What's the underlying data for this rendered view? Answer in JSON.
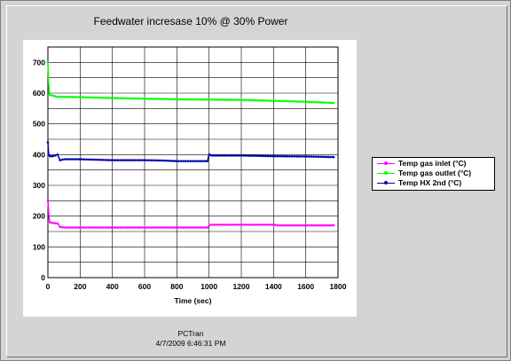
{
  "window": {
    "title": "Feedwater incresase 10% @ 30% Power",
    "footer_app": "PCTran",
    "footer_timestamp": "4/7/2009 6:46:31 PM"
  },
  "chart_data": {
    "type": "line",
    "title": "Feedwater incresase 10% @ 30% Power",
    "xlabel": "Time (sec)",
    "ylabel": "",
    "xlim": [
      0,
      1800
    ],
    "ylim": [
      0,
      750
    ],
    "xticks": [
      0,
      200,
      400,
      600,
      800,
      1000,
      1200,
      1400,
      1600,
      1800
    ],
    "yticks": [
      0,
      100,
      200,
      300,
      400,
      500,
      600,
      700
    ],
    "grid": true,
    "legend_position": "right",
    "series": [
      {
        "name": "Temp gas inlet (°C)",
        "color": "#ff00ff",
        "marker": "dot",
        "x": [
          0,
          5,
          10,
          30,
          60,
          75,
          100,
          200,
          400,
          600,
          800,
          990,
          1000,
          1010,
          1200,
          1400,
          1430,
          1600,
          1780
        ],
        "y": [
          250,
          210,
          180,
          178,
          176,
          165,
          163,
          163,
          163,
          163,
          163,
          163,
          170,
          172,
          172,
          172,
          170,
          170,
          170
        ]
      },
      {
        "name": "Temp gas outlet (°C)",
        "color": "#00ff00",
        "marker": "dot",
        "x": [
          0,
          5,
          10,
          30,
          60,
          100,
          200,
          400,
          600,
          800,
          1000,
          1200,
          1400,
          1600,
          1780
        ],
        "y": [
          700,
          630,
          595,
          592,
          588,
          588,
          587,
          584,
          582,
          580,
          579,
          578,
          575,
          572,
          568
        ]
      },
      {
        "name": "Temp HX 2nd (°C)",
        "color": "#0000b0",
        "marker": "dot",
        "x": [
          0,
          5,
          10,
          30,
          60,
          75,
          100,
          200,
          400,
          600,
          700,
          800,
          990,
          1000,
          1010,
          1200,
          1400,
          1600,
          1780
        ],
        "y": [
          440,
          400,
          395,
          395,
          400,
          382,
          385,
          385,
          382,
          382,
          381,
          379,
          379,
          402,
          397,
          397,
          395,
          394,
          392
        ]
      }
    ]
  }
}
